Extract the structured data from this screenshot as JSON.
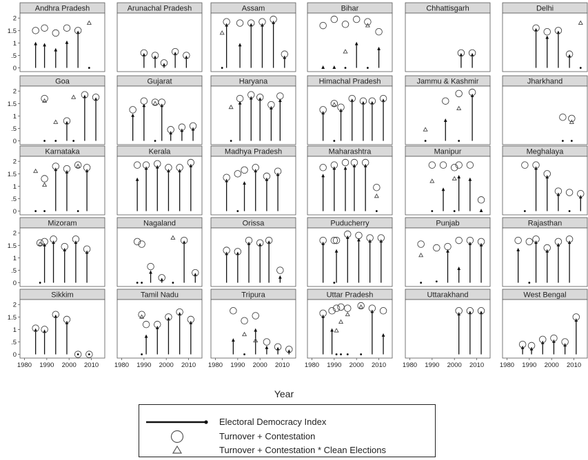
{
  "chart_data": {
    "type": "scatter",
    "xlabel": "Year",
    "xlim": [
      1978,
      2016
    ],
    "ylim": [
      -0.15,
      2.2
    ],
    "xticks": [
      "1980",
      "1990",
      "2000",
      "2010"
    ],
    "xtick_values": [
      1980,
      1990,
      2000,
      2010
    ],
    "yticks": [
      "0",
      ".5",
      "1",
      "1.5",
      "2"
    ],
    "ytick_values": [
      0,
      0.5,
      1,
      1.5,
      2
    ],
    "legend": {
      "eid": "Electoral Democracy Index",
      "tc": "Turnover + Contestation",
      "tcc": "Turnover + Contestation * Clean Elections"
    },
    "panels": [
      {
        "name": "Andhra Pradesh",
        "points": [
          [
            1985,
            1.05,
            1.5,
            null
          ],
          [
            1989,
            1.0,
            1.6,
            null
          ],
          [
            1994,
            0.8,
            1.4,
            null
          ],
          [
            1999,
            1.1,
            1.6,
            null
          ],
          [
            2004,
            1.5,
            1.5,
            null
          ],
          [
            2009,
            0.0,
            null,
            1.8
          ]
        ]
      },
      {
        "name": "Arunachal Pradesh",
        "points": [
          [
            1990,
            0.6,
            0.6,
            null
          ],
          [
            1995,
            0.5,
            0.5,
            null
          ],
          [
            1999,
            0.2,
            0.2,
            null
          ],
          [
            2004,
            0.65,
            0.65,
            null
          ],
          [
            2009,
            0.5,
            0.5,
            null
          ]
        ]
      },
      {
        "name": "Assam",
        "points": [
          [
            1983,
            0.0,
            null,
            1.4
          ],
          [
            1985,
            1.8,
            1.85,
            null
          ],
          [
            1991,
            1.0,
            1.8,
            null
          ],
          [
            1996,
            1.8,
            1.8,
            null
          ],
          [
            2001,
            1.8,
            1.85,
            null
          ],
          [
            2006,
            1.9,
            1.95,
            null
          ],
          [
            2011,
            0.5,
            0.55,
            null
          ]
        ]
      },
      {
        "name": "Bihar",
        "points": [
          [
            1985,
            0.1,
            1.7,
            null
          ],
          [
            1990,
            0.1,
            1.95,
            null
          ],
          [
            1995,
            0.0,
            1.75,
            0.65
          ],
          [
            2000,
            1.05,
            1.95,
            null
          ],
          [
            2005,
            0.0,
            1.85,
            1.7
          ],
          [
            2010,
            0.85,
            1.45,
            null
          ]
        ]
      },
      {
        "name": "Chhattisgarh",
        "points": [
          [
            2003,
            0.6,
            0.6,
            null
          ],
          [
            2008,
            0.6,
            0.6,
            null
          ]
        ]
      },
      {
        "name": "Delhi",
        "points": [
          [
            1993,
            1.6,
            1.6,
            null
          ],
          [
            1998,
            1.3,
            1.45,
            null
          ],
          [
            2003,
            1.5,
            1.5,
            null
          ],
          [
            2008,
            0.55,
            0.55,
            null
          ],
          [
            2013,
            0.0,
            null,
            1.8
          ]
        ]
      },
      {
        "name": "Goa",
        "points": [
          [
            1989,
            0.0,
            1.7,
            1.6
          ],
          [
            1994,
            0.0,
            null,
            0.75
          ],
          [
            1999,
            0.8,
            0.8,
            null
          ],
          [
            2002,
            0.0,
            null,
            1.75
          ],
          [
            2007,
            1.85,
            1.85,
            null
          ],
          [
            2012,
            1.75,
            1.75,
            null
          ]
        ]
      },
      {
        "name": "Gujarat",
        "points": [
          [
            1985,
            1.1,
            1.25,
            null
          ],
          [
            1990,
            1.5,
            1.6,
            null
          ],
          [
            1995,
            0.0,
            1.55,
            1.5
          ],
          [
            1998,
            1.5,
            1.55,
            null
          ],
          [
            2002,
            0.4,
            0.45,
            null
          ],
          [
            2007,
            0.5,
            0.55,
            null
          ],
          [
            2012,
            0.55,
            0.6,
            null
          ]
        ]
      },
      {
        "name": "Haryana",
        "points": [
          [
            1987,
            0.0,
            null,
            1.35
          ],
          [
            1991,
            1.6,
            1.7,
            null
          ],
          [
            1996,
            1.8,
            1.85,
            null
          ],
          [
            2000,
            1.75,
            1.75,
            null
          ],
          [
            2005,
            1.4,
            1.45,
            null
          ],
          [
            2009,
            1.7,
            1.8,
            null
          ]
        ]
      },
      {
        "name": "Himachal Pradesh",
        "points": [
          [
            1985,
            1.2,
            1.25,
            null
          ],
          [
            1990,
            0.0,
            1.5,
            1.45
          ],
          [
            1993,
            1.3,
            1.35,
            null
          ],
          [
            1998,
            1.7,
            1.7,
            null
          ],
          [
            2003,
            1.6,
            1.6,
            null
          ],
          [
            2007,
            1.6,
            1.6,
            null
          ],
          [
            2012,
            1.7,
            1.7,
            null
          ]
        ]
      },
      {
        "name": "Jammu & Kashmir",
        "points": [
          [
            1987,
            0.0,
            null,
            0.45
          ],
          [
            1996,
            0.9,
            1.6,
            null
          ],
          [
            2002,
            0.0,
            1.9,
            1.3
          ],
          [
            2008,
            1.9,
            1.95,
            null
          ]
        ]
      },
      {
        "name": "Jharkhand",
        "points": [
          [
            2005,
            0.0,
            0.95,
            null
          ],
          [
            2009,
            0.0,
            0.9,
            0.75
          ]
        ]
      },
      {
        "name": "Karnataka",
        "points": [
          [
            1985,
            0.0,
            null,
            1.6
          ],
          [
            1989,
            0.0,
            1.3,
            1.05
          ],
          [
            1994,
            1.75,
            1.8,
            null
          ],
          [
            1999,
            1.65,
            1.7,
            null
          ],
          [
            2004,
            0.0,
            1.85,
            1.8
          ],
          [
            2008,
            1.7,
            1.75,
            null
          ]
        ]
      },
      {
        "name": "Kerala",
        "points": [
          [
            1987,
            1.35,
            1.85,
            null
          ],
          [
            1991,
            1.8,
            1.85,
            null
          ],
          [
            1996,
            1.85,
            1.9,
            null
          ],
          [
            2001,
            1.7,
            1.75,
            null
          ],
          [
            2006,
            1.7,
            1.75,
            null
          ],
          [
            2011,
            1.9,
            1.95,
            null
          ]
        ]
      },
      {
        "name": "Madhya Pradesh",
        "points": [
          [
            1985,
            1.3,
            1.35,
            null
          ],
          [
            1990,
            0.0,
            1.5,
            null
          ],
          [
            1993,
            1.2,
            1.65,
            null
          ],
          [
            1998,
            1.7,
            1.75,
            null
          ],
          [
            2003,
            1.35,
            1.4,
            null
          ],
          [
            2008,
            1.55,
            1.6,
            null
          ]
        ]
      },
      {
        "name": "Maharashtra",
        "points": [
          [
            1985,
            1.5,
            1.75,
            null
          ],
          [
            1990,
            1.8,
            1.85,
            null
          ],
          [
            1995,
            1.8,
            1.95,
            null
          ],
          [
            1999,
            1.9,
            1.95,
            null
          ],
          [
            2004,
            1.9,
            1.95,
            null
          ],
          [
            2009,
            0.0,
            0.95,
            0.6
          ]
        ]
      },
      {
        "name": "Manipur",
        "points": [
          [
            1990,
            0.0,
            1.85,
            1.2
          ],
          [
            1995,
            0.95,
            1.85,
            null
          ],
          [
            2000,
            0.0,
            1.75,
            1.3
          ],
          [
            2002,
            1.45,
            1.85,
            null
          ],
          [
            2007,
            1.35,
            1.85,
            null
          ],
          [
            2012,
            0.1,
            0.45,
            null
          ]
        ]
      },
      {
        "name": "Meghalaya",
        "points": [
          [
            1988,
            0.0,
            1.85,
            null
          ],
          [
            1993,
            1.8,
            1.85,
            null
          ],
          [
            1998,
            1.45,
            1.5,
            null
          ],
          [
            2003,
            0.75,
            0.8,
            null
          ],
          [
            2008,
            0.0,
            0.75,
            null
          ],
          [
            2013,
            0.65,
            0.7,
            null
          ]
        ]
      },
      {
        "name": "Mizoram",
        "points": [
          [
            1987,
            0.0,
            1.6,
            1.55
          ],
          [
            1989,
            1.6,
            1.65,
            null
          ],
          [
            1993,
            1.7,
            1.75,
            null
          ],
          [
            1998,
            1.4,
            1.45,
            null
          ],
          [
            2003,
            1.7,
            1.75,
            null
          ],
          [
            2008,
            1.3,
            1.35,
            null
          ]
        ]
      },
      {
        "name": "Nagaland",
        "points": [
          [
            1987,
            0.0,
            1.65,
            null
          ],
          [
            1989,
            0.0,
            1.55,
            null
          ],
          [
            1993,
            0.5,
            0.65,
            null
          ],
          [
            1998,
            0.2,
            0.2,
            null
          ],
          [
            2003,
            0.0,
            null,
            1.8
          ],
          [
            2008,
            1.7,
            1.7,
            null
          ],
          [
            2013,
            0.4,
            0.4,
            null
          ]
        ]
      },
      {
        "name": "Orissa",
        "points": [
          [
            1985,
            1.25,
            1.3,
            null
          ],
          [
            1990,
            1.25,
            1.25,
            null
          ],
          [
            1995,
            1.65,
            1.7,
            null
          ],
          [
            2000,
            1.6,
            1.6,
            null
          ],
          [
            2004,
            1.7,
            1.7,
            null
          ],
          [
            2009,
            0.3,
            0.5,
            null
          ]
        ]
      },
      {
        "name": "Puducherry",
        "points": [
          [
            1985,
            1.65,
            1.7,
            null
          ],
          [
            1990,
            0.0,
            1.7,
            null
          ],
          [
            1991,
            1.35,
            1.7,
            null
          ],
          [
            1996,
            1.9,
            1.95,
            null
          ],
          [
            2001,
            1.8,
            1.9,
            null
          ],
          [
            2006,
            1.75,
            1.8,
            null
          ],
          [
            2011,
            1.75,
            1.8,
            null
          ]
        ]
      },
      {
        "name": "Punjab",
        "points": [
          [
            1985,
            0.0,
            1.55,
            1.1
          ],
          [
            1992,
            0.05,
            1.4,
            null
          ],
          [
            1997,
            1.35,
            1.45,
            null
          ],
          [
            2002,
            0.65,
            1.7,
            null
          ],
          [
            2007,
            1.65,
            1.7,
            null
          ],
          [
            2012,
            1.6,
            1.65,
            null
          ]
        ]
      },
      {
        "name": "Rajasthan",
        "points": [
          [
            1985,
            1.4,
            1.7,
            null
          ],
          [
            1990,
            0.0,
            1.65,
            null
          ],
          [
            1993,
            1.7,
            1.75,
            null
          ],
          [
            1998,
            1.35,
            1.4,
            null
          ],
          [
            2003,
            1.6,
            1.65,
            null
          ],
          [
            2008,
            1.7,
            1.75,
            null
          ]
        ]
      },
      {
        "name": "Sikkim",
        "points": [
          [
            1985,
            1.05,
            1.05,
            null
          ],
          [
            1989,
            1.0,
            1.0,
            null
          ],
          [
            1994,
            1.6,
            1.6,
            null
          ],
          [
            1999,
            1.35,
            1.4,
            null
          ],
          [
            2004,
            0.0,
            0.0,
            null
          ],
          [
            2009,
            0.0,
            0.0,
            null
          ]
        ]
      },
      {
        "name": "Tamil Nadu",
        "points": [
          [
            1989,
            0.0,
            1.6,
            1.5
          ],
          [
            1991,
            0.8,
            1.2,
            null
          ],
          [
            1996,
            1.15,
            1.2,
            null
          ],
          [
            2001,
            1.5,
            1.5,
            null
          ],
          [
            2006,
            1.7,
            1.7,
            null
          ],
          [
            2011,
            1.35,
            1.4,
            null
          ]
        ]
      },
      {
        "name": "Tripura",
        "points": [
          [
            1988,
            0.65,
            1.75,
            null
          ],
          [
            1993,
            0.0,
            1.35,
            0.8
          ],
          [
            1998,
            1.05,
            1.55,
            0.55
          ],
          [
            2003,
            0.35,
            0.5,
            null
          ],
          [
            2008,
            0.3,
            0.3,
            null
          ],
          [
            2013,
            0.2,
            0.2,
            null
          ]
        ]
      },
      {
        "name": "Uttar Pradesh",
        "points": [
          [
            1985,
            1.6,
            1.65,
            null
          ],
          [
            1989,
            1.05,
            1.75,
            null
          ],
          [
            1991,
            0.0,
            1.85,
            0.95
          ],
          [
            1993,
            0.0,
            1.9,
            1.3
          ],
          [
            1996,
            0.0,
            1.85,
            1.6
          ],
          [
            2002,
            0.0,
            1.95,
            1.9
          ],
          [
            2007,
            1.8,
            1.85,
            null
          ],
          [
            2012,
            0.85,
            1.75,
            null
          ]
        ]
      },
      {
        "name": "Uttarakhand",
        "points": [
          [
            2002,
            1.7,
            1.75,
            null
          ],
          [
            2007,
            1.75,
            1.75,
            null
          ],
          [
            2012,
            1.75,
            1.75,
            null
          ]
        ]
      },
      {
        "name": "West Bengal",
        "points": [
          [
            1987,
            0.35,
            0.4,
            null
          ],
          [
            1991,
            0.3,
            0.35,
            null
          ],
          [
            1996,
            0.55,
            0.6,
            null
          ],
          [
            2001,
            0.6,
            0.65,
            null
          ],
          [
            2006,
            0.45,
            0.5,
            null
          ],
          [
            2011,
            1.45,
            1.5,
            null
          ]
        ]
      }
    ]
  }
}
